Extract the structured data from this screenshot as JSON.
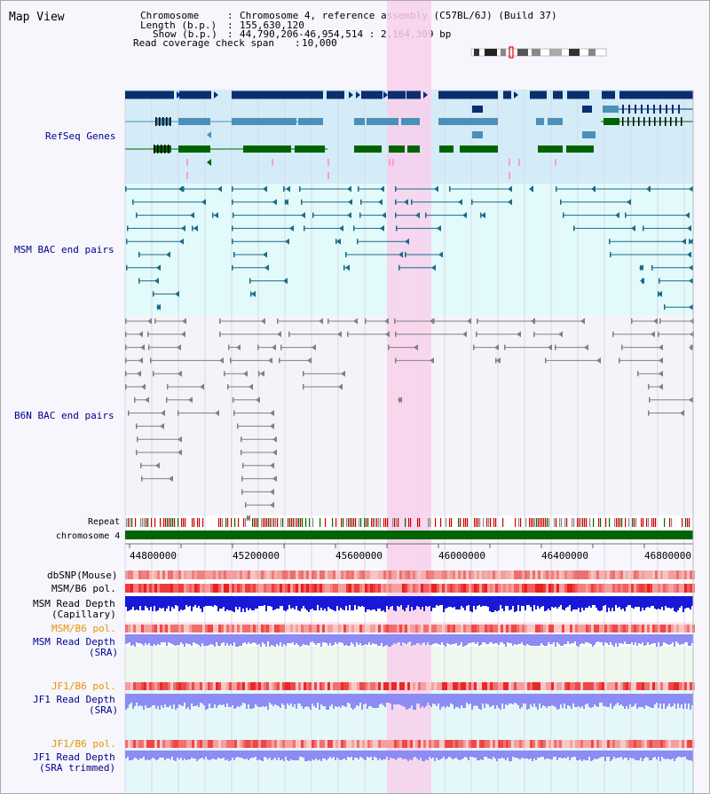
{
  "view": {
    "title": "Map View"
  },
  "header": {
    "chromosome_key": "Chromosome",
    "chromosome_value": "Chromosome 4, reference assembly (C57BL/6J) (Build 37)",
    "length_key": "Length (b.p.)",
    "length_value": "155,630,120",
    "show_key": "Show (b.p.)",
    "show_value": "44,790,206-46,954,514 : 2,164,309 bp",
    "coverage_key": "Read coverage check span",
    "coverage_value": "10,000"
  },
  "tracks": {
    "refseq": "RefSeq Genes",
    "msm_bac": "MSM BAC end pairs",
    "b6n_bac": "B6N BAC end pairs",
    "repeat": "Repeat",
    "chromosome": "chromosome 4",
    "dbsnp": "dbSNP(Mouse)",
    "msm_b6_pol_1": "MSM/B6 pol.",
    "msm_depth_cap_1": "MSM Read Depth",
    "msm_depth_cap_2": "(Capillary)",
    "msm_b6_pol_2": "MSM/B6 pol.",
    "msm_depth_sra_1": "MSM Read Depth",
    "msm_depth_sra_2": "(SRA)",
    "jf1_b6_pol_1": "JF1/B6 pol.",
    "jf1_depth_sra_1": "JF1 Read Depth",
    "jf1_depth_sra_2": "(SRA)",
    "jf1_b6_pol_2": "JF1/B6 pol.",
    "jf1_depth_trim_1": "JF1 Read Depth",
    "jf1_depth_trim_2": "(SRA trimmed)"
  },
  "axis": {
    "ticks": [
      "44800000",
      "45200000",
      "45600000",
      "46000000",
      "46400000",
      "46800000"
    ]
  },
  "colors": {
    "highlight": "#f8d0ec",
    "refseq_bg": "#d4ecf8",
    "bac_bg": "#e2fafa",
    "gene_dark": "#0a2e6e",
    "gene_mid": "#4a90b8",
    "gene_green": "#006400",
    "chromosome_bar": "#006400",
    "bac_msm": "#1a6a8a",
    "bac_b6n": "#808080",
    "depth_blue": "#1818d8",
    "depth_light": "#8c8cf4",
    "pol_red": "#e83030"
  }
}
